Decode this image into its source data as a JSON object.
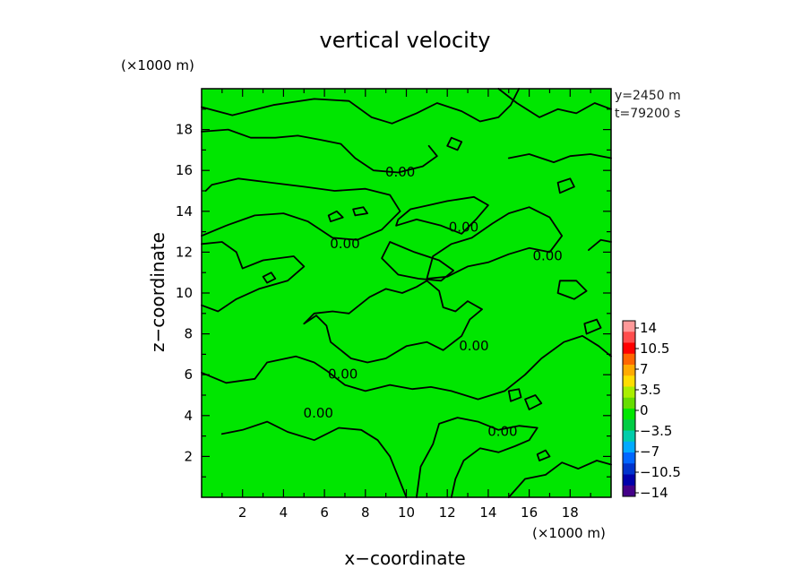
{
  "chart_data": {
    "type": "heatmap",
    "title": "vertical velocity",
    "xlabel": "x−coordinate",
    "ylabel": "z−coordinate",
    "x_unit": "(×1000 m)",
    "y_unit": "(×1000 m)",
    "xlim": [
      0,
      20
    ],
    "ylim": [
      0,
      20
    ],
    "x_ticks": [
      2,
      4,
      6,
      8,
      10,
      12,
      14,
      16,
      18
    ],
    "y_ticks": [
      2,
      4,
      6,
      8,
      10,
      12,
      14,
      16,
      18
    ],
    "x_tick_labels": [
      "2",
      "4",
      "6",
      "8",
      "10",
      "12",
      "14",
      "16",
      "18"
    ],
    "y_tick_labels": [
      "2",
      "4",
      "6",
      "8",
      "10",
      "12",
      "14",
      "16",
      "18"
    ],
    "info": [
      "y=2450 m",
      "t=79200 s"
    ],
    "field_color": "#00e600",
    "contour_line_color": "#000000",
    "contour_labels": [
      {
        "text": "0.00",
        "x": 9.7,
        "z": 15.9
      },
      {
        "text": "0.00",
        "x": 12.8,
        "z": 13.2
      },
      {
        "text": "0.00",
        "x": 7.0,
        "z": 12.4
      },
      {
        "text": "0.00",
        "x": 16.9,
        "z": 11.8
      },
      {
        "text": "0.00",
        "x": 6.9,
        "z": 6.0
      },
      {
        "text": "0.00",
        "x": 13.3,
        "z": 7.4
      },
      {
        "text": "0.00",
        "x": 5.7,
        "z": 4.1
      },
      {
        "text": "0.00",
        "x": 14.7,
        "z": 3.2
      }
    ],
    "contours": [
      [
        [
          0,
          19.1
        ],
        [
          1.5,
          18.7
        ],
        [
          3.5,
          19.2
        ],
        [
          5.5,
          19.5
        ],
        [
          7.2,
          19.4
        ],
        [
          8.3,
          18.6
        ],
        [
          9.3,
          18.3
        ],
        [
          10.5,
          18.8
        ],
        [
          11.5,
          19.3
        ],
        [
          12.7,
          18.9
        ],
        [
          13.6,
          18.4
        ],
        [
          14.5,
          18.6
        ],
        [
          15.1,
          19.2
        ],
        [
          15.5,
          20
        ]
      ],
      [
        [
          0,
          17.9
        ],
        [
          1.3,
          18.0
        ],
        [
          2.4,
          17.6
        ],
        [
          3.6,
          17.6
        ],
        [
          4.7,
          17.7
        ],
        [
          5.8,
          17.5
        ],
        [
          6.8,
          17.3
        ],
        [
          7.5,
          16.6
        ],
        [
          8.4,
          16.0
        ],
        [
          9.6,
          15.9
        ],
        [
          10.8,
          16.2
        ],
        [
          11.5,
          16.7
        ],
        [
          11.1,
          17.2
        ]
      ],
      [
        [
          0,
          12.8
        ],
        [
          1.2,
          13.3
        ],
        [
          2.6,
          13.8
        ],
        [
          4.0,
          13.9
        ],
        [
          5.2,
          13.5
        ],
        [
          6.4,
          12.7
        ],
        [
          7.6,
          12.6
        ],
        [
          8.8,
          13.1
        ],
        [
          9.7,
          14.0
        ],
        [
          9.2,
          14.8
        ],
        [
          8.0,
          15.1
        ],
        [
          6.5,
          15.0
        ],
        [
          5.0,
          15.2
        ],
        [
          3.4,
          15.4
        ],
        [
          1.8,
          15.6
        ],
        [
          0.5,
          15.3
        ],
        [
          0.2,
          15.0
        ]
      ],
      [
        [
          9.5,
          13.3
        ],
        [
          10.5,
          13.6
        ],
        [
          11.7,
          13.3
        ],
        [
          12.7,
          12.9
        ],
        [
          13.4,
          13.6
        ],
        [
          14.0,
          14.3
        ],
        [
          13.3,
          14.7
        ],
        [
          12.0,
          14.5
        ],
        [
          11.1,
          14.3
        ],
        [
          10.2,
          14.1
        ],
        [
          9.6,
          13.6
        ],
        [
          9.5,
          13.3
        ]
      ],
      [
        [
          0,
          9.4
        ],
        [
          0.8,
          9.1
        ],
        [
          1.7,
          9.7
        ],
        [
          2.8,
          10.2
        ],
        [
          4.2,
          10.6
        ],
        [
          5.0,
          11.3
        ],
        [
          4.5,
          11.8
        ],
        [
          3.0,
          11.6
        ],
        [
          2.0,
          11.2
        ],
        [
          1.7,
          12.0
        ],
        [
          1.0,
          12.5
        ],
        [
          0,
          12.4
        ]
      ],
      [
        [
          0,
          6.1
        ],
        [
          1.2,
          5.6
        ],
        [
          2.6,
          5.8
        ],
        [
          3.2,
          6.6
        ],
        [
          4.6,
          6.9
        ],
        [
          5.5,
          6.6
        ],
        [
          6.1,
          6.2
        ],
        [
          7.0,
          5.5
        ],
        [
          8.0,
          5.2
        ],
        [
          9.2,
          5.5
        ],
        [
          10.3,
          5.3
        ],
        [
          11.2,
          5.4
        ],
        [
          12.2,
          5.2
        ],
        [
          13.5,
          4.8
        ],
        [
          14.8,
          5.2
        ],
        [
          15.8,
          6.0
        ],
        [
          16.6,
          6.8
        ],
        [
          17.7,
          7.6
        ],
        [
          18.6,
          7.9
        ],
        [
          19.4,
          7.4
        ],
        [
          20,
          6.9
        ]
      ],
      [
        [
          5.0,
          8.5
        ],
        [
          5.6,
          8.9
        ],
        [
          6.1,
          8.4
        ],
        [
          6.3,
          7.6
        ],
        [
          6.8,
          7.2
        ],
        [
          7.3,
          6.8
        ],
        [
          8.1,
          6.6
        ],
        [
          9.0,
          6.8
        ],
        [
          10.0,
          7.4
        ],
        [
          11.0,
          7.6
        ],
        [
          11.8,
          7.2
        ],
        [
          12.7,
          7.9
        ],
        [
          13.1,
          8.7
        ],
        [
          13.7,
          9.2
        ],
        [
          13.0,
          9.6
        ],
        [
          12.4,
          9.1
        ],
        [
          11.8,
          9.3
        ],
        [
          11.6,
          10.1
        ],
        [
          11.0,
          10.6
        ],
        [
          10.5,
          10.3
        ],
        [
          9.8,
          10.0
        ],
        [
          9.0,
          10.2
        ],
        [
          8.2,
          9.8
        ],
        [
          7.2,
          9.0
        ],
        [
          6.4,
          9.1
        ],
        [
          5.5,
          9.0
        ],
        [
          5.0,
          8.5
        ]
      ],
      [
        [
          11.0,
          10.7
        ],
        [
          12.0,
          10.8
        ],
        [
          13.0,
          11.3
        ],
        [
          14.0,
          11.5
        ],
        [
          15.0,
          11.9
        ],
        [
          16.0,
          12.2
        ],
        [
          17.0,
          12.0
        ],
        [
          17.6,
          12.8
        ],
        [
          17.0,
          13.7
        ],
        [
          16.0,
          14.2
        ],
        [
          15.0,
          13.9
        ],
        [
          14.2,
          13.4
        ],
        [
          13.2,
          12.7
        ],
        [
          12.2,
          12.4
        ],
        [
          11.3,
          11.8
        ],
        [
          11.0,
          10.7
        ]
      ],
      [
        [
          9.2,
          12.5
        ],
        [
          10.4,
          12.0
        ],
        [
          11.6,
          11.6
        ],
        [
          12.3,
          11.1
        ],
        [
          11.7,
          10.6
        ],
        [
          10.6,
          10.7
        ],
        [
          9.6,
          10.9
        ],
        [
          8.8,
          11.7
        ],
        [
          9.2,
          12.5
        ]
      ],
      [
        [
          1.0,
          3.1
        ],
        [
          2.0,
          3.3
        ],
        [
          3.2,
          3.7
        ],
        [
          4.2,
          3.2
        ],
        [
          5.5,
          2.8
        ],
        [
          6.7,
          3.4
        ],
        [
          7.8,
          3.3
        ],
        [
          8.6,
          2.8
        ],
        [
          9.2,
          2.0
        ],
        [
          9.6,
          1.0
        ],
        [
          10.0,
          0
        ]
      ],
      [
        [
          10.5,
          0
        ],
        [
          10.7,
          1.5
        ],
        [
          11.3,
          2.6
        ],
        [
          11.6,
          3.6
        ],
        [
          12.5,
          3.9
        ],
        [
          13.5,
          3.7
        ],
        [
          14.5,
          3.3
        ],
        [
          15.5,
          3.5
        ],
        [
          16.4,
          3.4
        ],
        [
          16.0,
          2.8
        ],
        [
          15.3,
          2.5
        ],
        [
          14.5,
          2.2
        ],
        [
          13.6,
          2.4
        ],
        [
          12.8,
          1.8
        ],
        [
          12.4,
          0.9
        ],
        [
          12.2,
          0
        ]
      ],
      [
        [
          15.0,
          0
        ],
        [
          15.8,
          0.9
        ],
        [
          16.8,
          1.1
        ],
        [
          17.6,
          1.7
        ],
        [
          18.4,
          1.4
        ],
        [
          19.3,
          1.8
        ],
        [
          20,
          1.6
        ]
      ],
      [
        [
          14.5,
          20
        ],
        [
          15.4,
          19.3
        ],
        [
          16.5,
          18.6
        ],
        [
          17.4,
          19.0
        ],
        [
          18.3,
          18.8
        ],
        [
          19.2,
          19.3
        ],
        [
          20,
          19.0
        ]
      ],
      [
        [
          15.0,
          16.6
        ],
        [
          16.0,
          16.8
        ],
        [
          17.2,
          16.4
        ],
        [
          18.0,
          16.7
        ],
        [
          19.0,
          16.8
        ],
        [
          20,
          16.6
        ]
      ],
      [
        [
          18.9,
          12.1
        ],
        [
          19.5,
          12.6
        ],
        [
          20,
          12.5
        ]
      ],
      [
        [
          17.4,
          10.0
        ],
        [
          18.2,
          9.7
        ],
        [
          18.8,
          10.1
        ],
        [
          18.3,
          10.6
        ],
        [
          17.5,
          10.6
        ],
        [
          17.4,
          10.0
        ]
      ],
      [
        [
          16.0,
          4.3
        ],
        [
          16.6,
          4.6
        ],
        [
          16.3,
          5.0
        ],
        [
          15.8,
          4.8
        ],
        [
          16.0,
          4.3
        ]
      ],
      [
        [
          15.1,
          4.7
        ],
        [
          15.6,
          4.9
        ],
        [
          15.5,
          5.3
        ],
        [
          15.0,
          5.2
        ],
        [
          15.1,
          4.7
        ]
      ],
      [
        [
          18.8,
          8.0
        ],
        [
          19.5,
          8.3
        ],
        [
          19.3,
          8.7
        ],
        [
          18.7,
          8.5
        ],
        [
          18.8,
          8.0
        ]
      ],
      [
        [
          17.5,
          14.9
        ],
        [
          18.2,
          15.2
        ],
        [
          18.0,
          15.6
        ],
        [
          17.4,
          15.4
        ],
        [
          17.5,
          14.9
        ]
      ],
      [
        [
          7.5,
          13.8
        ],
        [
          8.1,
          13.9
        ],
        [
          7.9,
          14.2
        ],
        [
          7.4,
          14.1
        ],
        [
          7.5,
          13.8
        ]
      ],
      [
        [
          6.3,
          13.5
        ],
        [
          6.9,
          13.7
        ],
        [
          6.6,
          14.0
        ],
        [
          6.2,
          13.8
        ],
        [
          6.3,
          13.5
        ]
      ],
      [
        [
          3.2,
          10.5
        ],
        [
          3.6,
          10.7
        ],
        [
          3.4,
          11.0
        ],
        [
          3.0,
          10.8
        ],
        [
          3.2,
          10.5
        ]
      ],
      [
        [
          16.5,
          1.8
        ],
        [
          17.0,
          2.0
        ],
        [
          16.8,
          2.3
        ],
        [
          16.4,
          2.1
        ],
        [
          16.5,
          1.8
        ]
      ],
      [
        [
          12.0,
          17.2
        ],
        [
          12.5,
          17.0
        ],
        [
          12.7,
          17.4
        ],
        [
          12.2,
          17.6
        ],
        [
          12.0,
          17.2
        ]
      ]
    ],
    "colorbar": {
      "ticks": [
        "14",
        "10.5",
        "7",
        "3.5",
        "0",
        "−3.5",
        "−7",
        "−10.5",
        "−14"
      ],
      "colors": [
        "#ff9999",
        "#ff4d4d",
        "#ff0000",
        "#ff6600",
        "#ffaa00",
        "#ffdd00",
        "#aaee00",
        "#66dd00",
        "#00e600",
        "#00cc44",
        "#00ccaa",
        "#00aaff",
        "#0066ff",
        "#0033cc",
        "#0000aa",
        "#440088"
      ]
    }
  }
}
